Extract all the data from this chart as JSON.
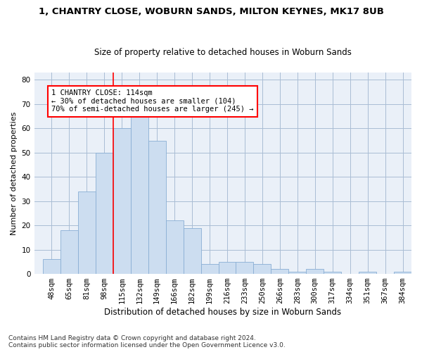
{
  "title": "1, CHANTRY CLOSE, WOBURN SANDS, MILTON KEYNES, MK17 8UB",
  "subtitle": "Size of property relative to detached houses in Woburn Sands",
  "xlabel": "Distribution of detached houses by size in Woburn Sands",
  "ylabel": "Number of detached properties",
  "bar_labels": [
    "48sqm",
    "65sqm",
    "81sqm",
    "98sqm",
    "115sqm",
    "132sqm",
    "149sqm",
    "166sqm",
    "182sqm",
    "199sqm",
    "216sqm",
    "233sqm",
    "250sqm",
    "266sqm",
    "283sqm",
    "300sqm",
    "317sqm",
    "334sqm",
    "351sqm",
    "367sqm",
    "384sqm"
  ],
  "bar_values": [
    6,
    18,
    34,
    50,
    60,
    65,
    55,
    22,
    19,
    4,
    5,
    5,
    4,
    2,
    1,
    2,
    1,
    0,
    1,
    0,
    1
  ],
  "bar_color": "#ccddf0",
  "bar_edge_color": "#89aed4",
  "vline_color": "red",
  "annotation_text": "1 CHANTRY CLOSE: 114sqm\n← 30% of detached houses are smaller (104)\n70% of semi-detached houses are larger (245) →",
  "annotation_box_color": "white",
  "annotation_box_edge_color": "red",
  "ylim": [
    0,
    83
  ],
  "yticks": [
    0,
    10,
    20,
    30,
    40,
    50,
    60,
    70,
    80
  ],
  "grid_color": "#aabdd4",
  "background_color": "#eaf0f8",
  "footnote": "Contains HM Land Registry data © Crown copyright and database right 2024.\nContains public sector information licensed under the Open Government Licence v3.0.",
  "title_fontsize": 9.5,
  "subtitle_fontsize": 8.5,
  "xlabel_fontsize": 8.5,
  "ylabel_fontsize": 8,
  "tick_fontsize": 7.5,
  "annotation_fontsize": 7.5,
  "footnote_fontsize": 6.5
}
